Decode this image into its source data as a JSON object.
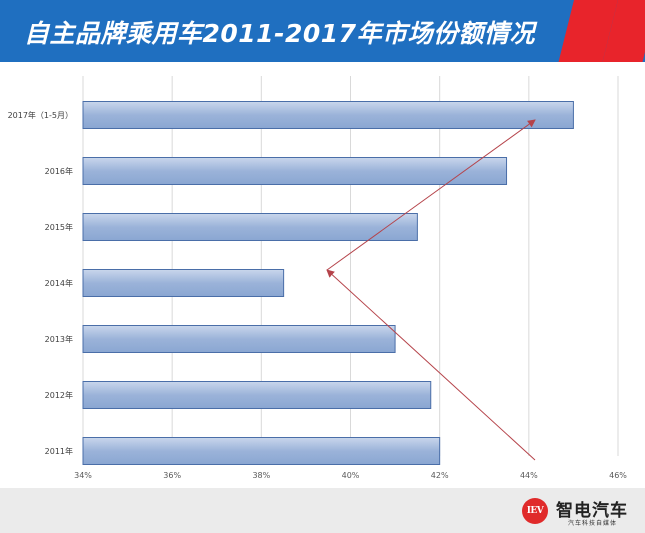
{
  "header": {
    "title": "自主品牌乘用车2011-2017年市场份额情况"
  },
  "chart_data": {
    "type": "bar",
    "orientation": "horizontal",
    "title": "自主品牌乘用车2011-2017年市场份额情况",
    "categories": [
      "2017年（1-5月）",
      "2016年",
      "2015年",
      "2014年",
      "2013年",
      "2012年",
      "2011年"
    ],
    "values": [
      0.45,
      0.435,
      0.415,
      0.385,
      0.41,
      0.418,
      0.42
    ],
    "xlim": [
      0.34,
      0.46
    ],
    "xticks": [
      "34%",
      "36%",
      "38%",
      "40%",
      "42%",
      "44%",
      "46%"
    ],
    "xtick_values": [
      0.34,
      0.36,
      0.38,
      0.4,
      0.42,
      0.44,
      0.46
    ],
    "grid": true,
    "bar_color": "#9bb3d9",
    "bar_border_color": "#4a6ea8",
    "arrow_color": "#b5434a"
  },
  "footer": {
    "logo_badge": "IEV",
    "logo_name": "智电汽车",
    "logo_sub": "汽车科技自媒体"
  }
}
